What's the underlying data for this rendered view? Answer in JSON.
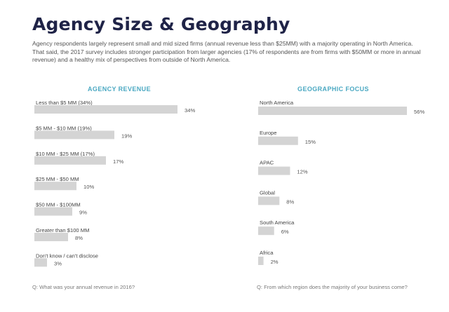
{
  "page": {
    "title": "Agency Size & Geography",
    "intro": "Agency respondents largely represent small and mid sized firms (annual revenue less than $25MM) with a majority operating in North America. That said, the 2017 survey includes stronger participation from larger agencies (17% of respondents are from firms with $50MM or more in annual revenue) and a healthy mix of perspectives from outside of North America."
  },
  "colors": {
    "bar": "#d4d4d4",
    "title": "#1f2347",
    "heading": "#4aa8c2"
  },
  "chart_data": [
    {
      "type": "bar",
      "orientation": "horizontal",
      "title": "AGENCY REVENUE",
      "categories": [
        "Less than $5 MM (34%)",
        "$5 MM - $10 MM (19%)",
        "$10 MM - $25 MM (17%)",
        "$25 MM - $50 MM",
        "$50 MM - $100MM",
        "Greater than $100 MM",
        "Don't know / can't disclose"
      ],
      "values": [
        34,
        19,
        17,
        10,
        9,
        8,
        3
      ],
      "value_labels": [
        "34%",
        "19%",
        "17%",
        "10%",
        "9%",
        "8%",
        "3%"
      ],
      "xlim": [
        0,
        56
      ],
      "question": "Q: What was your annual revenue in 2016?"
    },
    {
      "type": "bar",
      "orientation": "horizontal",
      "title": "GEOGRAPHIC FOCUS",
      "categories": [
        "North America",
        "Europe",
        "APAC",
        "Global",
        "South America",
        "Africa"
      ],
      "values": [
        56,
        15,
        12,
        8,
        6,
        2
      ],
      "value_labels": [
        "56%",
        "15%",
        "12%",
        "8%",
        "6%",
        "2%"
      ],
      "xlim": [
        0,
        56
      ],
      "question": "Q: From which region does the majority of your business come?"
    }
  ]
}
